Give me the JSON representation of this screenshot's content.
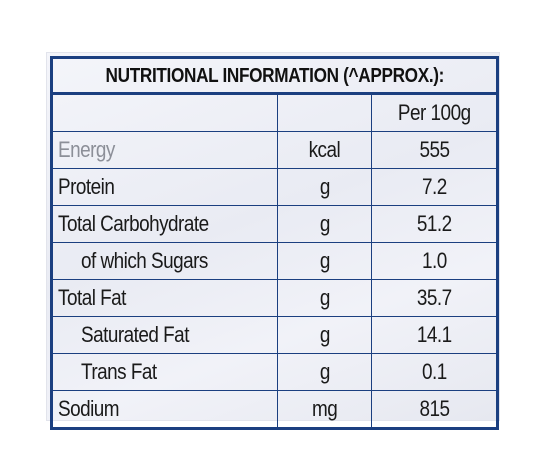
{
  "table": {
    "title": "NUTRITIONAL INFORMATION (^APPROX.):",
    "header": {
      "name": "",
      "unit": "",
      "value": "Per 100g"
    },
    "rows": [
      {
        "name": "Energy",
        "unit": "kcal",
        "value": "555"
      },
      {
        "name": "Protein",
        "unit": "g",
        "value": "7.2"
      },
      {
        "name": "Total Carbohydrate",
        "unit": "g",
        "value": "51.2"
      },
      {
        "name": "of which Sugars",
        "unit": "g",
        "value": "1.0"
      },
      {
        "name": "Total Fat",
        "unit": "g",
        "value": "35.7"
      },
      {
        "name": "Saturated Fat",
        "unit": "g",
        "value": "14.1"
      },
      {
        "name": "Trans Fat",
        "unit": "g",
        "value": "0.1"
      },
      {
        "name": "Sodium",
        "unit": "mg",
        "value": "815"
      }
    ],
    "colors": {
      "border": "#1b3f80",
      "text": "#1a1a1a",
      "background": "#eceef5"
    }
  }
}
